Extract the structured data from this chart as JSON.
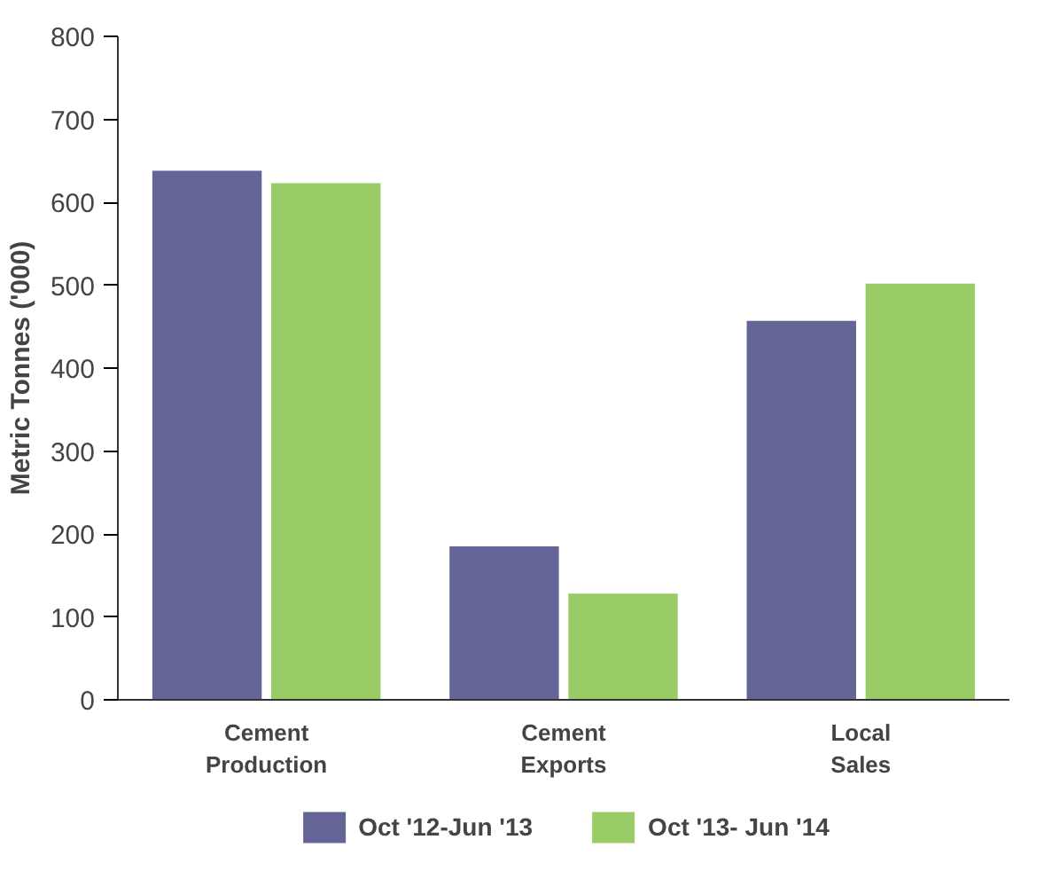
{
  "chart_data": {
    "type": "bar",
    "ylabel": "Metric Tonnes ('000)",
    "categories": [
      "Cement\nProduction",
      "Cement\nExports",
      "Local\nSales"
    ],
    "series": [
      {
        "name": "Oct '12-Jun '13",
        "color": "#646496",
        "values": [
          638,
          185,
          457
        ]
      },
      {
        "name": "Oct '13- Jun '14",
        "color": "#99cc66",
        "values": [
          623,
          128,
          502
        ]
      }
    ],
    "ylim": [
      0,
      800
    ],
    "yticks": [
      0,
      100,
      200,
      300,
      400,
      500,
      600,
      700,
      800
    ],
    "grid": false,
    "legend": "bottom"
  }
}
